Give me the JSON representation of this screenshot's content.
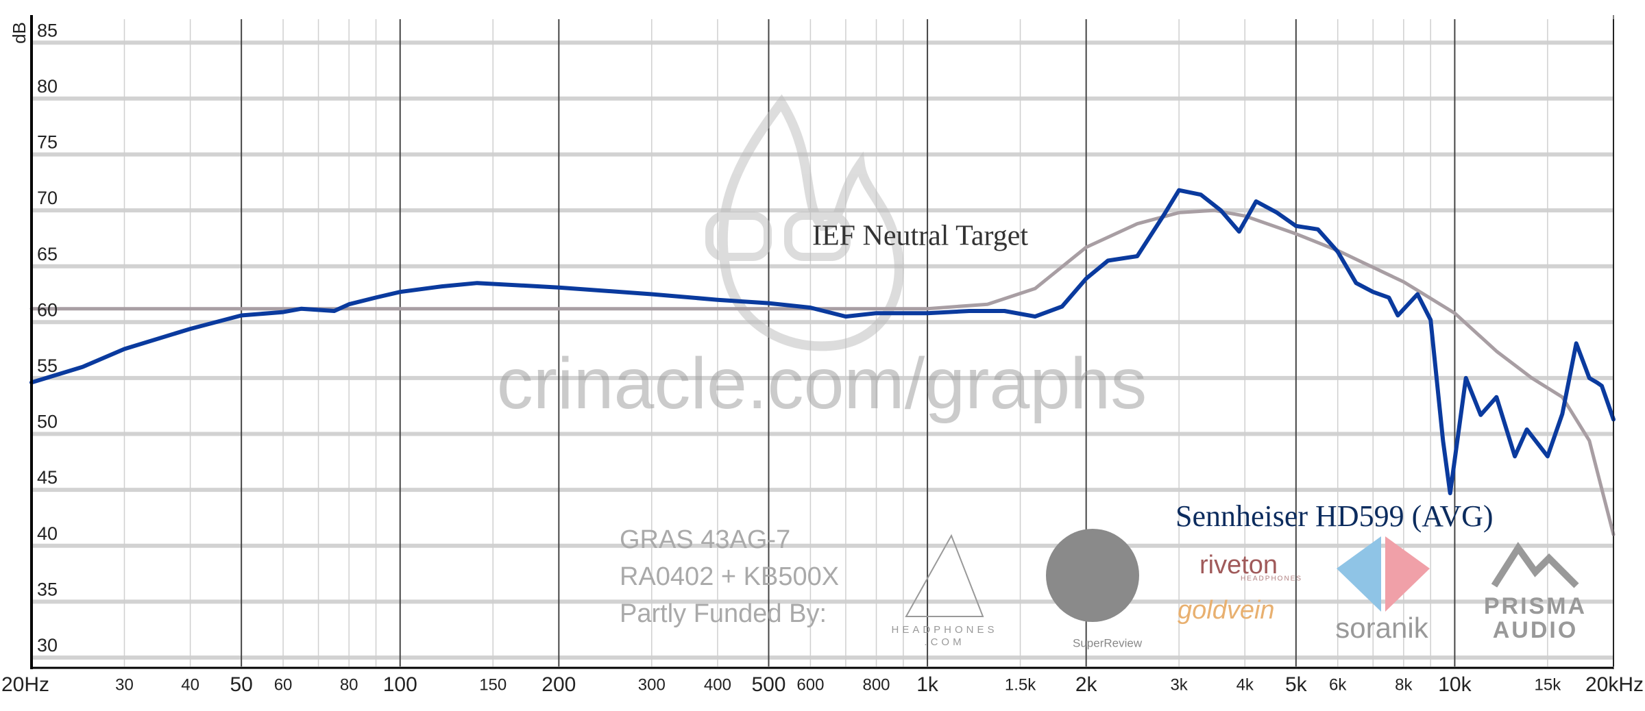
{
  "chart_data": {
    "type": "line",
    "xscale": "log",
    "y_label": "dB",
    "xlim": [
      20,
      20000
    ],
    "ylim": [
      29.2,
      87.1
    ],
    "yticks": [
      30,
      35,
      40,
      45,
      50,
      55,
      60,
      65,
      70,
      75,
      80,
      85
    ],
    "xticks": [
      {
        "value": 20,
        "label": "20Hz"
      },
      30,
      40,
      50,
      60,
      80,
      100,
      150,
      200,
      300,
      400,
      500,
      600,
      800,
      {
        "value": 1000,
        "label": "1k"
      },
      {
        "value": 1500,
        "label": "1.5k"
      },
      {
        "value": 2000,
        "label": "2k"
      },
      {
        "value": 3000,
        "label": "3k"
      },
      {
        "value": 4000,
        "label": "4k"
      },
      {
        "value": 5000,
        "label": "5k"
      },
      {
        "value": 6000,
        "label": "6k"
      },
      {
        "value": 8000,
        "label": "8k"
      },
      {
        "value": 10000,
        "label": "10k"
      },
      {
        "value": 15000,
        "label": "15k"
      },
      {
        "value": 20000,
        "label": "20kHz"
      }
    ],
    "xminor_ticks": [
      70,
      90,
      700,
      900,
      7000,
      9000
    ],
    "grid": true,
    "series": [
      {
        "name": "IEF Neutral Target",
        "color": "#a89ea3",
        "x": [
          20,
          100,
          500,
          1000,
          1300,
          1600,
          2000,
          2500,
          3000,
          3500,
          4000,
          5000,
          6000,
          7000,
          8000,
          10000,
          12000,
          14000,
          16000,
          18000,
          20000
        ],
        "values": [
          61.2,
          61.2,
          61.2,
          61.2,
          61.6,
          63.0,
          66.7,
          68.8,
          69.8,
          70.0,
          69.5,
          67.9,
          66.4,
          64.9,
          63.6,
          60.8,
          57.4,
          55.0,
          53.3,
          49.4,
          41.0
        ]
      },
      {
        "name": "Sennheiser HD599 (AVG)",
        "color": "#0a3a9e",
        "x": [
          20,
          25,
          30,
          40,
          50,
          60,
          65,
          75,
          80,
          90,
          100,
          120,
          140,
          200,
          300,
          400,
          500,
          600,
          700,
          800,
          1000,
          1200,
          1400,
          1600,
          1800,
          2000,
          2200,
          2500,
          2800,
          3000,
          3300,
          3600,
          3900,
          4200,
          4600,
          5000,
          5500,
          6000,
          6500,
          7000,
          7500,
          7800,
          8500,
          9000,
          9500,
          9800,
          10500,
          11200,
          12000,
          13000,
          13700,
          15000,
          16000,
          17000,
          18000,
          18600,
          19000,
          20000
        ],
        "values": [
          54.6,
          56.0,
          57.6,
          59.4,
          60.6,
          60.9,
          61.2,
          61.0,
          61.6,
          62.2,
          62.7,
          63.2,
          63.5,
          63.1,
          62.5,
          62.0,
          61.7,
          61.3,
          60.5,
          60.8,
          60.8,
          61.0,
          61.0,
          60.5,
          61.4,
          63.9,
          65.5,
          65.9,
          69.5,
          71.8,
          71.4,
          70.0,
          68.1,
          70.8,
          69.8,
          68.6,
          68.3,
          66.3,
          63.5,
          62.7,
          62.2,
          60.6,
          62.5,
          60.2,
          49.4,
          44.7,
          55.0,
          51.7,
          53.3,
          48.0,
          50.4,
          48.0,
          51.8,
          58.1,
          55.0,
          54.6,
          54.3,
          51.3
        ]
      }
    ],
    "watermark": "crinacle.com/graphs",
    "annotations": [
      "GRAS 43AG-7",
      "RA0402 + KB500X",
      "Partly Funded By:"
    ],
    "sponsors": [
      "HEADPHONES",
      ".COM",
      "SuperReview",
      "riveton",
      "HEADPHONES",
      "goldvein",
      "soranik",
      "PRISMA",
      "AUDIO"
    ]
  }
}
